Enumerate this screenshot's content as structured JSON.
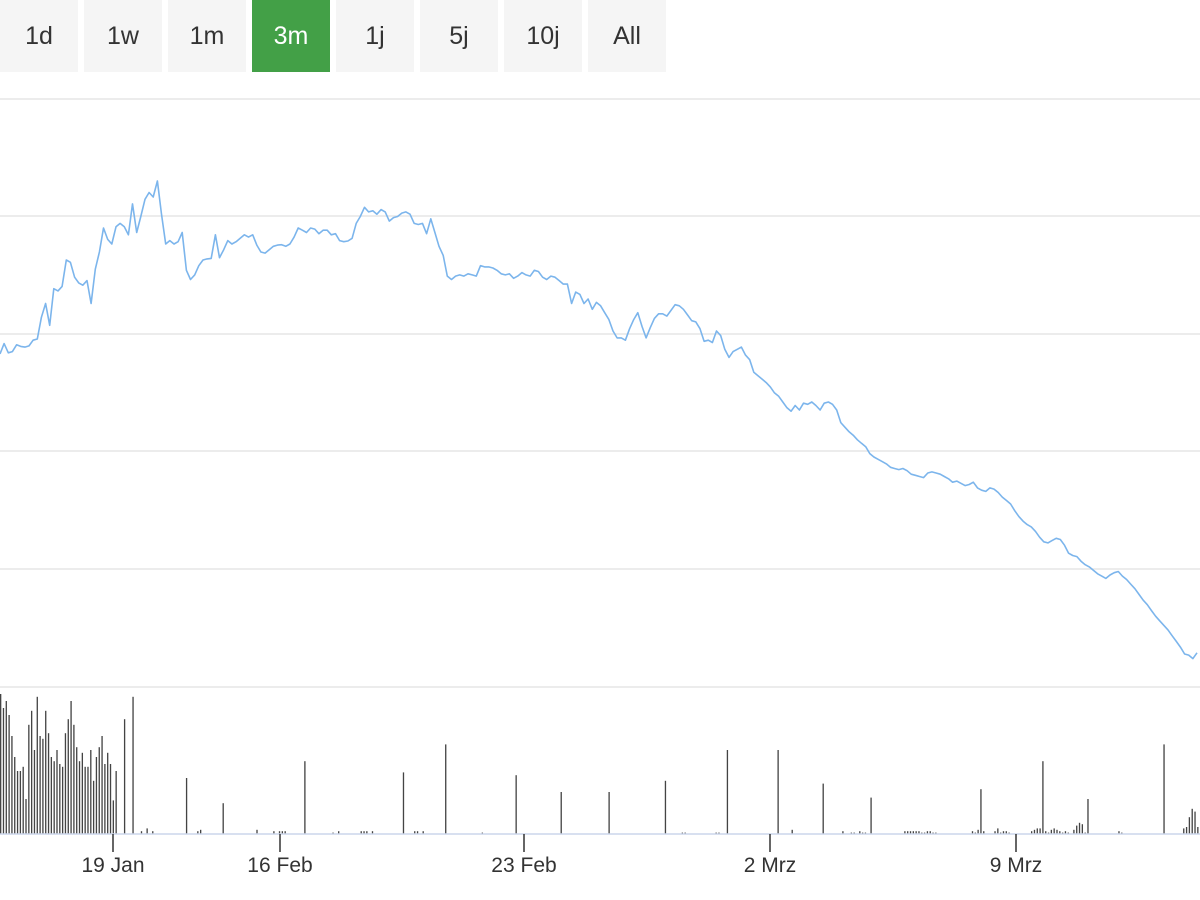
{
  "range_tabs": {
    "items": [
      {
        "label": "1d"
      },
      {
        "label": "1w"
      },
      {
        "label": "1m"
      },
      {
        "label": "3m"
      },
      {
        "label": "1j"
      },
      {
        "label": "5j"
      },
      {
        "label": "10j"
      },
      {
        "label": "All"
      }
    ],
    "active_label": "3m",
    "active_color": "#43a047"
  },
  "chart_data": {
    "type": "line",
    "title": "",
    "xlabel": "",
    "ylabel": "",
    "grid": true,
    "x_tick_labels": [
      "19 Jan",
      "16 Feb",
      "23 Feb",
      "2 Mrz",
      "9 Mrz"
    ],
    "y_tick_labels": [],
    "series": [
      {
        "kind": "line",
        "color": "#7cb5ec",
        "values": [
          5.75,
          6.2,
          5.8,
          5.85,
          6.15,
          6.08,
          6.05,
          6.1,
          6.35,
          6.4,
          7.35,
          7.95,
          7.0,
          8.6,
          8.5,
          8.7,
          9.85,
          9.75,
          9.1,
          8.85,
          8.75,
          8.95,
          7.95,
          9.45,
          10.2,
          11.25,
          10.75,
          10.55,
          11.3,
          11.45,
          11.3,
          10.95,
          12.3,
          11.05,
          11.75,
          12.5,
          12.8,
          12.6,
          13.3,
          11.85,
          10.55,
          10.7,
          10.55,
          10.65,
          11.05,
          9.4,
          9.0,
          9.2,
          9.6,
          9.85,
          9.9,
          9.92,
          10.95,
          9.95,
          10.3,
          10.7,
          10.55,
          10.65,
          10.8,
          10.95,
          10.85,
          10.95,
          10.5,
          10.2,
          10.15,
          10.3,
          10.45,
          10.5,
          10.52,
          10.45,
          10.55,
          10.85,
          11.25,
          11.15,
          11.05,
          11.25,
          11.2,
          11.0,
          11.15,
          11.15,
          10.95,
          11.0,
          10.7,
          10.65,
          10.68,
          10.8,
          11.45,
          11.75,
          12.15,
          11.95,
          12.0,
          11.85,
          12.05,
          11.95,
          11.55,
          11.7,
          11.75,
          11.9,
          11.95,
          11.85,
          11.45,
          11.4,
          11.45,
          11.0,
          11.65,
          11.05,
          10.45,
          10.05,
          9.15,
          9.0,
          9.15,
          9.2,
          9.15,
          9.25,
          9.2,
          9.15,
          9.6,
          9.55,
          9.55,
          9.5,
          9.4,
          9.25,
          9.2,
          9.25,
          9.05,
          9.15,
          9.3,
          9.2,
          9.15,
          9.4,
          9.35,
          9.1,
          9.0,
          9.15,
          9.1,
          8.95,
          8.8,
          8.8,
          7.95,
          8.45,
          8.35,
          7.95,
          8.15,
          7.7,
          8.0,
          7.85,
          7.55,
          7.25,
          6.75,
          6.45,
          6.45,
          6.35,
          6.85,
          7.25,
          7.55,
          6.95,
          6.45,
          6.9,
          7.3,
          7.5,
          7.5,
          7.4,
          7.65,
          7.9,
          7.85,
          7.7,
          7.45,
          7.2,
          7.15,
          6.85,
          6.3,
          6.35,
          6.25,
          6.75,
          6.55,
          5.95,
          5.6,
          5.85,
          5.95,
          6.05,
          5.7,
          5.5,
          4.95,
          4.8,
          4.65,
          4.5,
          4.3,
          4.05,
          3.9,
          3.65,
          3.4,
          3.25,
          3.5,
          3.3,
          3.6,
          3.55,
          3.65,
          3.5,
          3.3,
          3.6,
          3.65,
          3.55,
          3.3,
          2.75,
          2.55,
          2.35,
          2.2,
          2.0,
          1.85,
          1.7,
          1.4,
          1.25,
          1.15,
          1.05,
          0.95,
          0.8,
          0.75,
          0.7,
          0.75,
          0.65,
          0.5,
          0.45,
          0.4,
          0.35,
          0.55,
          0.6,
          0.55,
          0.5,
          0.4,
          0.3,
          0.15,
          0.2,
          0.1,
          0.0,
          0.05,
          0.15,
          -0.1,
          -0.2,
          -0.25,
          -0.1,
          -0.15,
          -0.3,
          -0.5,
          -0.65,
          -0.8,
          -1.1,
          -1.35,
          -1.55,
          -1.7,
          -1.8,
          -2.0,
          -2.25,
          -2.45,
          -2.5,
          -2.4,
          -2.3,
          -2.35,
          -2.6,
          -2.95,
          -3.05,
          -3.1,
          -3.3,
          -3.45,
          -3.55,
          -3.7,
          -3.85,
          -3.95,
          -4.05,
          -3.9,
          -3.8,
          -3.75,
          -3.95,
          -4.1,
          -4.3,
          -4.5,
          -4.75,
          -5.0,
          -5.2,
          -5.45,
          -5.7,
          -5.9,
          -6.1,
          -6.3,
          -6.55,
          -6.8,
          -7.05,
          -7.35,
          -7.4,
          -7.55,
          -7.3
        ]
      },
      {
        "kind": "bar",
        "color": "#444444",
        "values": [
          100,
          90,
          95,
          85,
          70,
          55,
          45,
          45,
          48,
          25,
          78,
          88,
          60,
          98,
          70,
          68,
          88,
          72,
          55,
          52,
          60,
          50,
          48,
          72,
          82,
          95,
          78,
          62,
          52,
          58,
          48,
          48,
          60,
          38,
          55,
          62,
          70,
          50,
          58,
          50,
          24,
          45,
          0,
          0,
          82,
          0,
          0,
          98,
          0,
          0,
          2,
          0,
          4,
          0,
          2,
          0,
          0,
          0,
          0,
          0,
          0,
          0,
          0,
          0,
          0,
          0,
          40,
          0,
          0,
          0,
          2,
          3,
          0,
          0,
          0,
          0,
          0,
          0,
          0,
          22,
          0,
          0,
          0,
          0,
          0,
          0,
          0,
          0,
          0,
          0,
          0,
          3,
          0,
          0,
          0,
          0,
          0,
          2,
          0,
          2,
          2,
          2,
          0,
          0,
          0,
          0,
          0,
          0,
          52,
          0,
          0,
          0,
          0,
          0,
          0,
          0,
          0,
          0,
          1,
          0,
          2,
          0,
          0,
          0,
          0,
          0,
          0,
          0,
          2,
          2,
          2,
          0,
          2,
          0,
          0,
          0,
          0,
          0,
          0,
          0,
          0,
          0,
          0,
          44,
          0,
          0,
          0,
          2,
          2,
          0,
          2,
          0,
          0,
          0,
          0,
          0,
          0,
          0,
          64,
          0,
          0,
          0,
          0,
          0,
          0,
          0,
          0,
          0,
          0,
          0,
          0,
          1,
          0,
          0,
          0,
          0,
          0,
          0,
          0,
          0,
          0,
          0,
          0,
          42,
          0,
          0,
          0,
          0,
          0,
          0,
          0,
          0,
          0,
          0,
          0,
          0,
          0,
          0,
          0,
          30,
          0,
          0,
          0,
          0,
          0,
          0,
          0,
          0,
          0,
          0,
          0,
          0,
          0,
          0,
          0,
          0,
          30,
          0,
          0,
          0,
          0,
          0,
          0,
          0,
          0,
          0,
          0,
          0,
          0,
          0,
          0,
          0,
          0,
          0,
          0,
          0,
          38,
          0,
          0,
          0,
          0,
          0,
          1,
          1,
          0,
          0,
          0,
          0,
          0,
          0,
          0,
          0,
          0,
          0,
          1,
          1,
          0,
          0,
          60,
          0,
          0,
          0,
          0,
          0,
          0,
          0,
          0,
          0,
          0,
          0,
          0,
          0,
          0,
          0,
          0,
          0,
          60,
          0,
          0,
          0,
          0,
          3,
          0,
          0,
          0,
          0,
          0,
          0,
          0,
          0,
          0,
          0,
          36,
          0,
          0,
          0,
          0,
          0,
          0,
          2,
          0,
          0,
          1,
          1,
          0,
          2,
          1,
          1,
          0,
          26,
          0,
          0,
          0,
          0,
          0,
          0,
          0,
          0,
          0,
          0,
          0,
          2,
          2,
          2,
          2,
          2,
          2,
          1,
          1,
          2,
          2,
          1,
          1,
          0,
          0,
          0,
          0,
          0,
          0,
          0,
          0,
          0,
          0,
          0,
          0,
          2,
          1,
          3,
          32,
          2,
          0,
          0,
          0,
          2,
          4,
          1,
          2,
          2,
          1,
          0,
          0,
          0,
          0,
          0,
          0,
          0,
          2,
          3,
          4,
          4,
          52,
          2,
          1,
          3,
          4,
          3,
          2,
          1,
          2,
          1,
          0,
          3,
          6,
          8,
          7,
          1,
          25,
          0,
          0,
          0,
          0,
          0,
          0,
          0,
          0,
          0,
          0,
          2,
          1,
          0,
          0,
          0,
          0,
          0,
          0,
          0,
          0,
          0,
          0,
          0,
          0,
          0,
          0,
          64,
          0,
          0,
          0,
          0,
          0,
          0,
          4,
          5,
          12,
          18,
          16,
          5
        ]
      }
    ]
  }
}
